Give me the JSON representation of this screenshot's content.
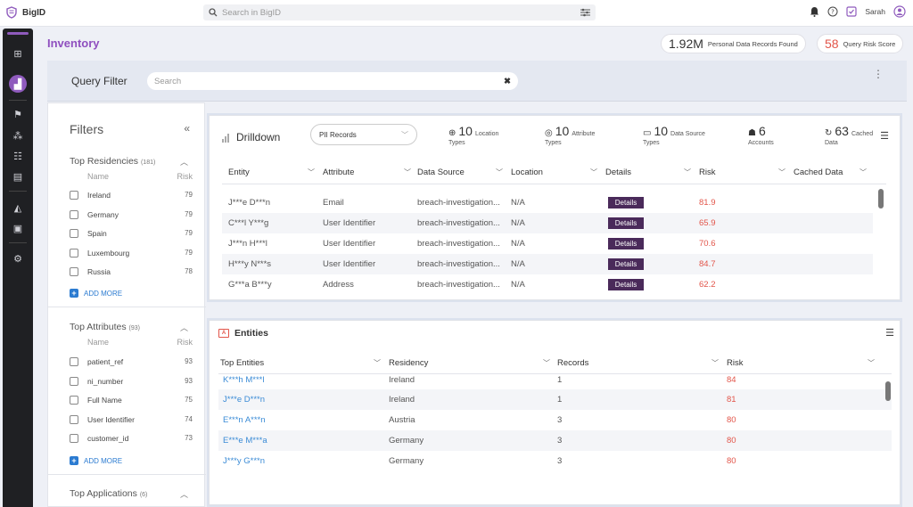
{
  "app": {
    "logo_text": "BigID"
  },
  "topbar": {
    "search_placeholder": "Search in BigID",
    "user_name": "Sarah"
  },
  "page": {
    "title": "Inventory"
  },
  "kpis": [
    {
      "value": "1.92M",
      "label": "Personal Data Records Found",
      "color": "#333333"
    },
    {
      "value": "58",
      "label": "Query Risk Score",
      "color": "#e2554a"
    }
  ],
  "query_filter": {
    "title": "Query Filter",
    "search_placeholder": "Search",
    "clear_glyph": "✖",
    "more_glyph": "⋮"
  },
  "filters": {
    "title": "Filters",
    "collapse_glyph": "«",
    "col_name": "Name",
    "col_risk": "Risk",
    "add_more": "ADD MORE",
    "sections": [
      {
        "title": "Top Residencies",
        "count": "(181)",
        "items": [
          {
            "name": "Ireland",
            "risk": "79"
          },
          {
            "name": "Germany",
            "risk": "79"
          },
          {
            "name": "Spain",
            "risk": "79"
          },
          {
            "name": "Luxembourg",
            "risk": "79"
          },
          {
            "name": "Russia",
            "risk": "78"
          }
        ]
      },
      {
        "title": "Top Attributes",
        "count": "(93)",
        "items": [
          {
            "name": "patient_ref",
            "risk": "93"
          },
          {
            "name": "ni_number",
            "risk": "93"
          },
          {
            "name": "Full Name",
            "risk": "75"
          },
          {
            "name": "User Identifier",
            "risk": "74"
          },
          {
            "name": "customer_id",
            "risk": "73"
          }
        ]
      },
      {
        "title": "Top Applications",
        "count": "(6)",
        "items": []
      }
    ]
  },
  "drilldown": {
    "title": "Drilldown",
    "select_value": "PII Records",
    "stats": [
      {
        "icon": "location-icon",
        "glyph": "⊕",
        "value": "10",
        "label1": "Location",
        "label2": "Types"
      },
      {
        "icon": "attribute-icon",
        "glyph": "◎",
        "value": "10",
        "label1": "Attribute",
        "label2": "Types"
      },
      {
        "icon": "datasource-icon",
        "glyph": "▭",
        "value": "10",
        "label1": "Data Source",
        "label2": "Types"
      },
      {
        "icon": "accounts-icon",
        "glyph": "☗",
        "value": "6",
        "label1": "",
        "label2": "Accounts"
      },
      {
        "icon": "cached-icon",
        "glyph": "↻",
        "value": "63",
        "label1": "Cached",
        "label2": "Data"
      }
    ],
    "columns": [
      "Entity",
      "Attribute",
      "Data Source",
      "Location",
      "Details",
      "Risk",
      "Cached Data"
    ],
    "details_label": "Details",
    "rows": [
      {
        "entity": "J***e D***n",
        "attribute": "Email",
        "source": "breach-investigation...",
        "location": "N/A",
        "risk": "81.9"
      },
      {
        "entity": "C***l Y***g",
        "attribute": "User Identifier",
        "source": "breach-investigation...",
        "location": "N/A",
        "risk": "65.9"
      },
      {
        "entity": "J***n H***l",
        "attribute": "User Identifier",
        "source": "breach-investigation...",
        "location": "N/A",
        "risk": "70.6"
      },
      {
        "entity": "H***y N***s",
        "attribute": "User Identifier",
        "source": "breach-investigation...",
        "location": "N/A",
        "risk": "84.7"
      },
      {
        "entity": "G***a B***y",
        "attribute": "Address",
        "source": "breach-investigation...",
        "location": "N/A",
        "risk": "62.2"
      }
    ]
  },
  "entities": {
    "title": "Entities",
    "columns": [
      "Top Entities",
      "Residency",
      "Records",
      "Risk"
    ],
    "rows": [
      {
        "name": "K***h M***l",
        "residency": "Ireland",
        "records": "1",
        "risk": "84"
      },
      {
        "name": "J***e D***n",
        "residency": "Ireland",
        "records": "1",
        "risk": "81"
      },
      {
        "name": "E***n A***n",
        "residency": "Austria",
        "records": "3",
        "risk": "80"
      },
      {
        "name": "E***e M***a",
        "residency": "Germany",
        "records": "3",
        "risk": "80"
      },
      {
        "name": "J***y G***n",
        "residency": "Germany",
        "records": "3",
        "risk": "80"
      }
    ]
  }
}
